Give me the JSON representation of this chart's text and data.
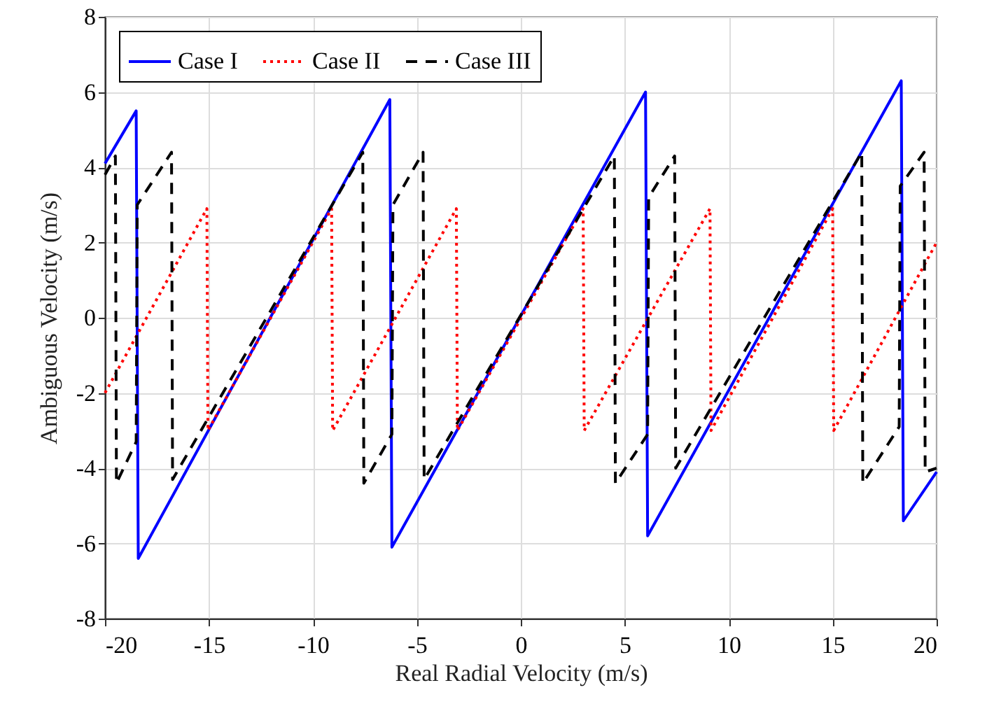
{
  "chart_data": {
    "type": "line",
    "xlabel": "Real Radial Velocity (m/s)",
    "ylabel": "Ambiguous Velocity (m/s)",
    "xlim": [
      -20,
      20
    ],
    "ylim": [
      -8,
      8
    ],
    "xticks": [
      -20,
      -15,
      -10,
      -5,
      0,
      5,
      10,
      15,
      20
    ],
    "yticks": [
      -8,
      -6,
      -4,
      -2,
      0,
      2,
      4,
      6,
      8
    ],
    "grid": true,
    "legend": "top left",
    "marker": "none",
    "series": [
      {
        "name": "Case I",
        "color": "#0000ff",
        "line_style": "solid",
        "x": [
          -20,
          -18.5,
          -18.4,
          -6.3,
          -6.2,
          6.0,
          6.1,
          18.3,
          18.4,
          20
        ],
        "values": [
          4.1,
          5.5,
          -6.4,
          5.8,
          -6.1,
          6.0,
          -5.8,
          6.3,
          -5.4,
          -4.1
        ]
      },
      {
        "name": "Case II",
        "color": "#ff0000",
        "line_style": "dotted",
        "x": [
          -20,
          -15.1,
          -15.05,
          -9.1,
          -9.05,
          -3.1,
          -3.05,
          3.0,
          3.05,
          9.1,
          9.15,
          15.0,
          15.05,
          20
        ],
        "values": [
          -2,
          2.9,
          -3,
          2.9,
          -3,
          2.9,
          -3,
          2.9,
          -3,
          2.9,
          -3,
          2.9,
          -3,
          2
        ]
      },
      {
        "name": "Case III",
        "color": "#000000",
        "line_style": "dashed",
        "x": [
          -20,
          -19.5,
          -19.45,
          -18.5,
          -18.45,
          -16.8,
          -16.75,
          -7.6,
          -7.55,
          -6.2,
          -6.15,
          -4.7,
          -4.65,
          4.5,
          4.55,
          6.1,
          6.15,
          7.4,
          7.45,
          16.4,
          16.45,
          18.2,
          18.25,
          19.4,
          19.45,
          20
        ],
        "values": [
          3.8,
          4.3,
          -4.4,
          -3.3,
          3.0,
          4.4,
          -4.3,
          4.4,
          -4.4,
          -3.1,
          3.0,
          4.4,
          -4.3,
          4.3,
          -4.4,
          -3.1,
          3.2,
          4.3,
          -4.0,
          4.4,
          -4.4,
          -2.9,
          3.5,
          4.4,
          -4.1,
          -4.0
        ]
      }
    ]
  }
}
